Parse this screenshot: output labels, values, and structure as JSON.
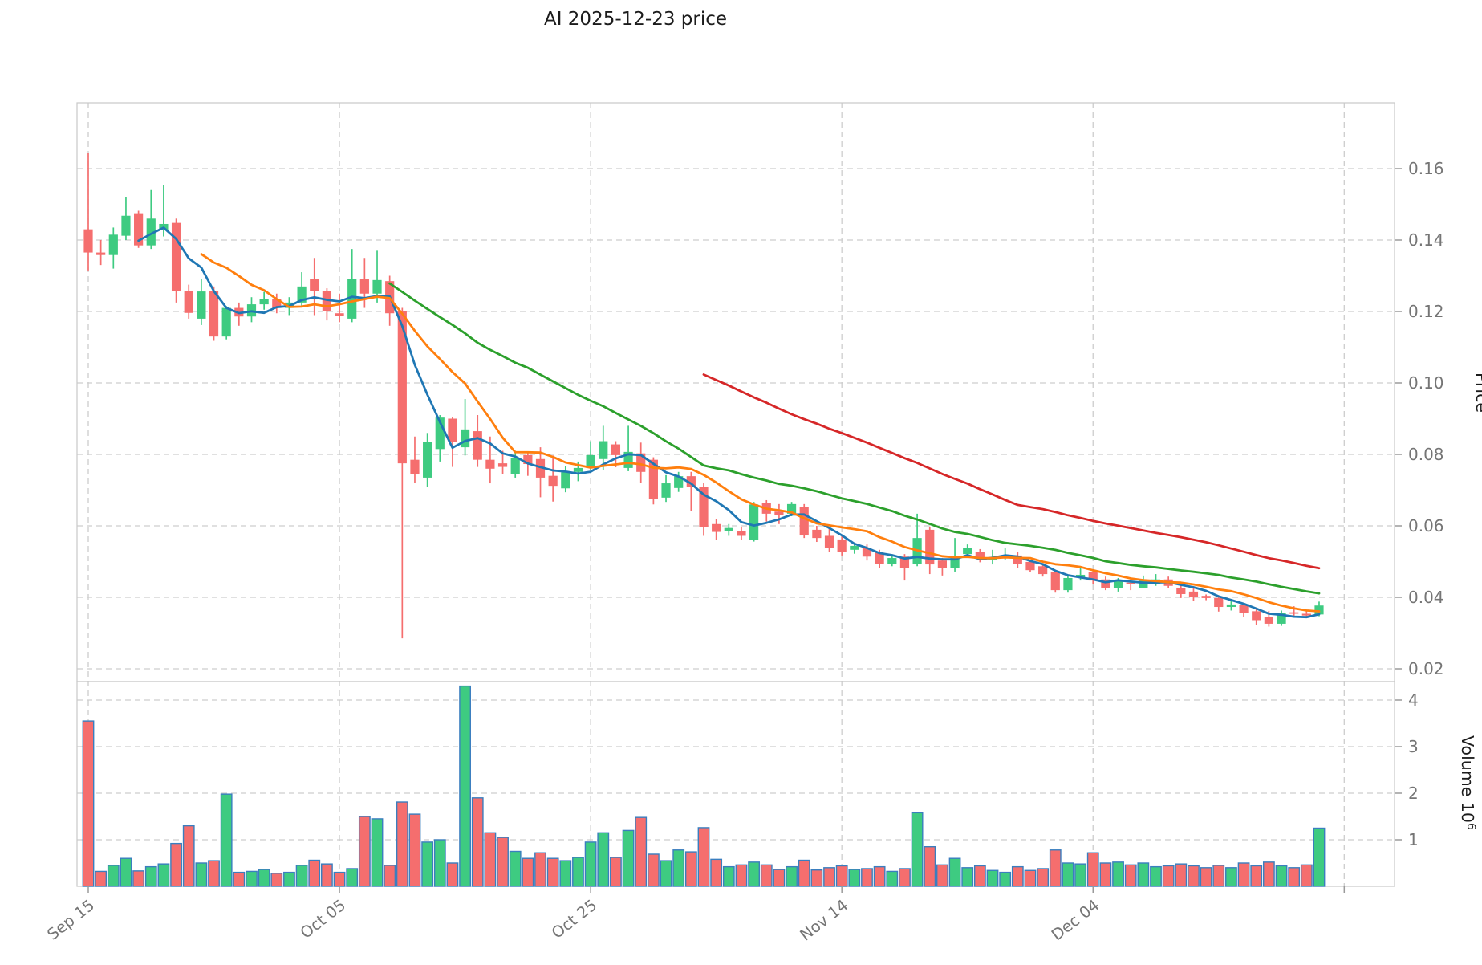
{
  "title": "AI  2025-12-23  price",
  "chart_data": {
    "type": "candlestick",
    "title": "AI  2025-12-23  price",
    "price_axis": {
      "label": "Price",
      "ticks": [
        0.16,
        0.14,
        0.12,
        0.1,
        0.08,
        0.06,
        0.04,
        0.02
      ],
      "ylim": [
        0.0164,
        0.1784
      ],
      "grid": true
    },
    "volume_axis": {
      "label": "Volume",
      "unit": "10",
      "unit_exponent": "6",
      "ticks": [
        4,
        3,
        2,
        1
      ],
      "ylim_millions": [
        0,
        4.4
      ],
      "grid": true
    },
    "x_axis": {
      "tick_indices": [
        0,
        20,
        40,
        60,
        80,
        100
      ],
      "tick_labels": [
        "Sep 15",
        "Oct 05",
        "Oct 25",
        "Nov 14",
        "Dec 04",
        ""
      ]
    },
    "moving_averages": [
      {
        "window": 5,
        "color": "#1f77b4"
      },
      {
        "window": 10,
        "color": "#ff7f0e"
      },
      {
        "window": 25,
        "color": "#2ca02c"
      },
      {
        "window": 50,
        "color": "#d62728"
      }
    ],
    "colors": {
      "up": "#3ecb81",
      "down": "#f56e6e",
      "volume_edge": "#3a7ebf",
      "grid": "#cdcdcd",
      "tick_text": "#757575",
      "title_text": "#1c1c1c",
      "spine": "#c8c8c8"
    },
    "ohlcv": [
      [
        0.143,
        0.1645,
        0.1315,
        0.1365,
        3.55
      ],
      [
        0.1365,
        0.14,
        0.133,
        0.1358,
        0.32
      ],
      [
        0.1358,
        0.1435,
        0.132,
        0.1415,
        0.45
      ],
      [
        0.1412,
        0.152,
        0.14,
        0.1468,
        0.6
      ],
      [
        0.1475,
        0.1482,
        0.1378,
        0.1385,
        0.33
      ],
      [
        0.1385,
        0.154,
        0.1375,
        0.146,
        0.42
      ],
      [
        0.1428,
        0.1555,
        0.141,
        0.1445,
        0.48
      ],
      [
        0.1448,
        0.146,
        0.1225,
        0.1258,
        0.92
      ],
      [
        0.1258,
        0.1275,
        0.118,
        0.1196,
        1.3
      ],
      [
        0.118,
        0.129,
        0.1162,
        0.1256,
        0.5
      ],
      [
        0.1258,
        0.127,
        0.1118,
        0.113,
        0.55
      ],
      [
        0.113,
        0.1215,
        0.1122,
        0.121,
        1.98
      ],
      [
        0.121,
        0.1225,
        0.116,
        0.1186,
        0.3
      ],
      [
        0.1186,
        0.124,
        0.117,
        0.122,
        0.32
      ],
      [
        0.122,
        0.1255,
        0.1205,
        0.1235,
        0.36
      ],
      [
        0.1235,
        0.125,
        0.1195,
        0.121,
        0.28
      ],
      [
        0.121,
        0.124,
        0.119,
        0.1225,
        0.3
      ],
      [
        0.1225,
        0.131,
        0.1215,
        0.127,
        0.45
      ],
      [
        0.129,
        0.135,
        0.119,
        0.1258,
        0.56
      ],
      [
        0.1258,
        0.1265,
        0.1175,
        0.12,
        0.48
      ],
      [
        0.1195,
        0.125,
        0.117,
        0.1188,
        0.3
      ],
      [
        0.118,
        0.1375,
        0.117,
        0.129,
        0.38
      ],
      [
        0.129,
        0.135,
        0.121,
        0.125,
        1.5
      ],
      [
        0.125,
        0.137,
        0.1225,
        0.1288,
        1.45
      ],
      [
        0.1285,
        0.13,
        0.116,
        0.1195,
        0.45
      ],
      [
        0.12,
        0.121,
        0.0285,
        0.0775,
        1.81
      ],
      [
        0.0785,
        0.085,
        0.072,
        0.0745,
        1.55
      ],
      [
        0.0735,
        0.086,
        0.071,
        0.0835,
        0.95
      ],
      [
        0.0815,
        0.091,
        0.078,
        0.0903,
        1.0
      ],
      [
        0.09,
        0.0905,
        0.0765,
        0.0835,
        0.5
      ],
      [
        0.082,
        0.0955,
        0.0797,
        0.087,
        4.3
      ],
      [
        0.0865,
        0.091,
        0.0765,
        0.0785,
        1.9
      ],
      [
        0.0785,
        0.085,
        0.0719,
        0.076,
        1.15
      ],
      [
        0.0775,
        0.081,
        0.0745,
        0.0765,
        1.05
      ],
      [
        0.0745,
        0.081,
        0.0735,
        0.079,
        0.75
      ],
      [
        0.0798,
        0.0805,
        0.074,
        0.0773,
        0.6
      ],
      [
        0.0787,
        0.082,
        0.068,
        0.0735,
        0.72
      ],
      [
        0.074,
        0.0797,
        0.0668,
        0.0712,
        0.6
      ],
      [
        0.0705,
        0.0768,
        0.0694,
        0.075,
        0.55
      ],
      [
        0.0751,
        0.078,
        0.0725,
        0.0762,
        0.62
      ],
      [
        0.0762,
        0.0837,
        0.0757,
        0.0798,
        0.95
      ],
      [
        0.0787,
        0.088,
        0.0757,
        0.0837,
        1.15
      ],
      [
        0.0828,
        0.0837,
        0.0764,
        0.0798,
        0.62
      ],
      [
        0.0762,
        0.088,
        0.0753,
        0.0807,
        1.2
      ],
      [
        0.0803,
        0.0833,
        0.072,
        0.0751,
        1.48
      ],
      [
        0.0785,
        0.0792,
        0.066,
        0.0675,
        0.69
      ],
      [
        0.0679,
        0.0742,
        0.0667,
        0.0719,
        0.55
      ],
      [
        0.0706,
        0.0751,
        0.0695,
        0.0739,
        0.78
      ],
      [
        0.0739,
        0.0751,
        0.0641,
        0.0708,
        0.74
      ],
      [
        0.0708,
        0.0719,
        0.0572,
        0.0596,
        1.26
      ],
      [
        0.0605,
        0.0618,
        0.0561,
        0.0583,
        0.58
      ],
      [
        0.0585,
        0.0605,
        0.0572,
        0.0594,
        0.42
      ],
      [
        0.0585,
        0.0596,
        0.0561,
        0.0572,
        0.46
      ],
      [
        0.0561,
        0.0667,
        0.0556,
        0.066,
        0.52
      ],
      [
        0.0663,
        0.0672,
        0.0612,
        0.0634,
        0.46
      ],
      [
        0.064,
        0.0661,
        0.0605,
        0.0631,
        0.36
      ],
      [
        0.0634,
        0.0667,
        0.0627,
        0.0661,
        0.42
      ],
      [
        0.0652,
        0.0661,
        0.0566,
        0.0573,
        0.56
      ],
      [
        0.0589,
        0.06,
        0.0555,
        0.0566,
        0.35
      ],
      [
        0.0572,
        0.0596,
        0.0528,
        0.0539,
        0.4
      ],
      [
        0.0562,
        0.0571,
        0.0517,
        0.0528,
        0.44
      ],
      [
        0.0533,
        0.0551,
        0.0522,
        0.0544,
        0.36
      ],
      [
        0.0539,
        0.0548,
        0.0503,
        0.0514,
        0.38
      ],
      [
        0.0525,
        0.0533,
        0.0483,
        0.0494,
        0.42
      ],
      [
        0.0494,
        0.0517,
        0.0487,
        0.051,
        0.32
      ],
      [
        0.0514,
        0.0521,
        0.0447,
        0.0481,
        0.38
      ],
      [
        0.0494,
        0.0634,
        0.0487,
        0.0566,
        1.58
      ],
      [
        0.0589,
        0.0596,
        0.0465,
        0.0492,
        0.85
      ],
      [
        0.0503,
        0.051,
        0.0461,
        0.0483,
        0.46
      ],
      [
        0.0481,
        0.0566,
        0.0472,
        0.051,
        0.6
      ],
      [
        0.0521,
        0.0548,
        0.0514,
        0.0539,
        0.4
      ],
      [
        0.0528,
        0.0535,
        0.0498,
        0.051,
        0.44
      ],
      [
        0.0505,
        0.0533,
        0.0492,
        0.0512,
        0.34
      ],
      [
        0.0512,
        0.0537,
        0.0505,
        0.0517,
        0.3
      ],
      [
        0.0517,
        0.0526,
        0.0483,
        0.0494,
        0.42
      ],
      [
        0.0499,
        0.0503,
        0.047,
        0.0476,
        0.34
      ],
      [
        0.0487,
        0.0492,
        0.0458,
        0.0465,
        0.38
      ],
      [
        0.0472,
        0.0476,
        0.0413,
        0.042,
        0.78
      ],
      [
        0.042,
        0.0461,
        0.0413,
        0.0454,
        0.5
      ],
      [
        0.0456,
        0.0481,
        0.0447,
        0.0463,
        0.48
      ],
      [
        0.047,
        0.0474,
        0.0438,
        0.0447,
        0.72
      ],
      [
        0.045,
        0.0458,
        0.042,
        0.0427,
        0.5
      ],
      [
        0.0425,
        0.0454,
        0.0416,
        0.0447,
        0.52
      ],
      [
        0.0441,
        0.0454,
        0.042,
        0.0436,
        0.46
      ],
      [
        0.0427,
        0.0461,
        0.0425,
        0.0447,
        0.5
      ],
      [
        0.0438,
        0.0465,
        0.0432,
        0.045,
        0.42
      ],
      [
        0.045,
        0.0458,
        0.0427,
        0.0432,
        0.44
      ],
      [
        0.0427,
        0.0436,
        0.0398,
        0.0409,
        0.48
      ],
      [
        0.0416,
        0.0425,
        0.0391,
        0.0402,
        0.44
      ],
      [
        0.0404,
        0.0408,
        0.0392,
        0.0398,
        0.4
      ],
      [
        0.0398,
        0.0405,
        0.036,
        0.0373,
        0.45
      ],
      [
        0.0373,
        0.0391,
        0.0363,
        0.038,
        0.4
      ],
      [
        0.0378,
        0.0384,
        0.0346,
        0.0356,
        0.5
      ],
      [
        0.0361,
        0.0368,
        0.0323,
        0.0336,
        0.44
      ],
      [
        0.0345,
        0.0362,
        0.0318,
        0.0326,
        0.52
      ],
      [
        0.0326,
        0.0363,
        0.032,
        0.0357,
        0.44
      ],
      [
        0.0358,
        0.0375,
        0.0348,
        0.0354,
        0.4
      ],
      [
        0.0354,
        0.0362,
        0.0342,
        0.0349,
        0.46
      ],
      [
        0.0352,
        0.0388,
        0.0347,
        0.0377,
        1.25
      ]
    ]
  }
}
